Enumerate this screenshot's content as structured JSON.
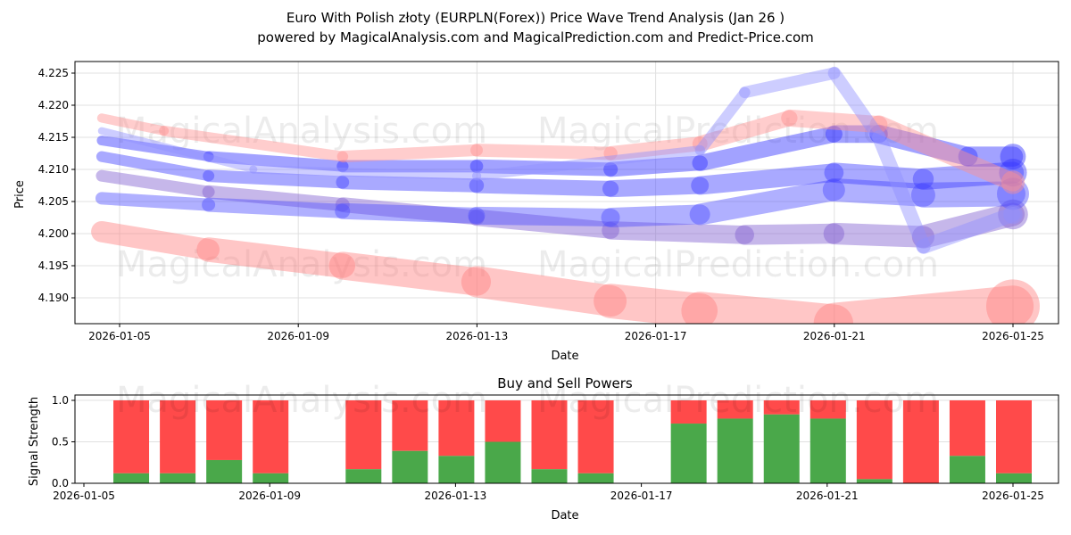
{
  "chart_data": [
    {
      "type": "line",
      "title": "Euro With Polish złoty (EURPLN(Forex)) Price Wave Trend Analysis (Jan 26 )",
      "subtitle": "powered by MagicalAnalysis.com and MagicalPrediction.com and Predict-Price.com",
      "xlabel": "Date",
      "ylabel": "Price",
      "xlim": [
        4.0,
        26.0
      ],
      "ylim": [
        4.186,
        4.227
      ],
      "x_ticks": [
        5,
        9,
        13,
        17,
        21,
        25
      ],
      "x_tick_labels": [
        "2026-01-05",
        "2026-01-09",
        "2026-01-13",
        "2026-01-17",
        "2026-01-21",
        "2026-01-25"
      ],
      "y_ticks": [
        4.19,
        4.195,
        4.2,
        4.205,
        4.21,
        4.215,
        4.22,
        4.225
      ],
      "y_tick_labels": [
        "4.190",
        "4.195",
        "4.200",
        "4.205",
        "4.210",
        "4.215",
        "4.220",
        "4.225"
      ],
      "grid": true,
      "watermarks": [
        "MagicalAnalysis.com",
        "MagicalPrediction.com"
      ],
      "series": [
        {
          "name": "red-low",
          "color": "#ff8080",
          "points": [
            [
              4.6,
              4.2003
            ],
            [
              7,
              4.1975
            ],
            [
              10,
              4.195
            ],
            [
              13,
              4.1925
            ],
            [
              16,
              4.1895
            ],
            [
              18,
              4.188
            ],
            [
              21,
              4.186
            ],
            [
              25,
              4.1887
            ]
          ]
        },
        {
          "name": "purple-low",
          "color": "#8060d0",
          "points": [
            [
              4.6,
              4.209
            ],
            [
              7,
              4.2065
            ],
            [
              10,
              4.2045
            ],
            [
              13,
              4.2025
            ],
            [
              16,
              4.2005
            ],
            [
              19,
              4.1998
            ],
            [
              21,
              4.2
            ],
            [
              23,
              4.1995
            ],
            [
              25,
              4.203
            ]
          ]
        },
        {
          "name": "blue-low",
          "color": "#5050ff",
          "points": [
            [
              4.6,
              4.2055
            ],
            [
              7,
              4.2045
            ],
            [
              10,
              4.2035
            ],
            [
              13,
              4.2028
            ],
            [
              16,
              4.2025
            ],
            [
              18,
              4.203
            ],
            [
              21,
              4.2068
            ],
            [
              23,
              4.206
            ],
            [
              25,
              4.2062
            ]
          ]
        },
        {
          "name": "blue-mid",
          "color": "#4040ff",
          "points": [
            [
              4.6,
              4.212
            ],
            [
              7,
              4.209
            ],
            [
              10,
              4.208
            ],
            [
              13,
              4.2075
            ],
            [
              16,
              4.207
            ],
            [
              18,
              4.2075
            ],
            [
              21,
              4.2095
            ],
            [
              23,
              4.2085
            ],
            [
              25,
              4.2095
            ]
          ]
        },
        {
          "name": "blue-upper",
          "color": "#3030ff",
          "points": [
            [
              4.6,
              4.2145
            ],
            [
              7,
              4.212
            ],
            [
              10,
              4.2105
            ],
            [
              13,
              4.2105
            ],
            [
              16,
              4.21
            ],
            [
              18,
              4.211
            ],
            [
              21,
              4.2155
            ],
            [
              22,
              4.2155
            ],
            [
              24,
              4.212
            ],
            [
              25,
              4.212
            ]
          ]
        },
        {
          "name": "pink-upper",
          "color": "#ff9090",
          "points": [
            [
              4.6,
              4.218
            ],
            [
              6,
              4.216
            ],
            [
              10,
              4.212
            ],
            [
              13,
              4.213
            ],
            [
              16,
              4.2125
            ],
            [
              18,
              4.214
            ],
            [
              20,
              4.218
            ],
            [
              22,
              4.217
            ],
            [
              25,
              4.208
            ]
          ]
        },
        {
          "name": "light-blue-wave",
          "color": "#9090ff",
          "points": [
            [
              4.6,
              4.216
            ],
            [
              8,
              4.21
            ],
            [
              13,
              4.209
            ],
            [
              18,
              4.213
            ],
            [
              19,
              4.222
            ],
            [
              21,
              4.225
            ],
            [
              22,
              4.215
            ],
            [
              23,
              4.198
            ],
            [
              25,
              4.203
            ]
          ]
        }
      ]
    },
    {
      "type": "bar",
      "title": "Buy and Sell Powers",
      "xlabel": "Date",
      "ylabel": "Signal Strength",
      "xlim": [
        4.2,
        26.0
      ],
      "ylim": [
        0,
        1.05
      ],
      "y_ticks": [
        0,
        0.5,
        1.0
      ],
      "y_tick_labels": [
        "0.0",
        "0.5",
        "1.0"
      ],
      "x_ticks": [
        5,
        9,
        13,
        17,
        21,
        25
      ],
      "x_tick_labels": [
        "2026-01-05",
        "2026-01-09",
        "2026-01-13",
        "2026-01-17",
        "2026-01-21",
        "2026-01-25"
      ],
      "days": [
        6,
        7,
        8,
        9,
        11,
        12,
        13,
        14,
        15,
        16,
        18,
        19,
        20,
        21,
        22,
        23,
        24,
        25
      ],
      "buy": [
        0.12,
        0.12,
        0.28,
        0.12,
        0.17,
        0.39,
        0.33,
        0.5,
        0.17,
        0.12,
        0.72,
        0.78,
        0.83,
        0.78,
        0.05,
        0.0,
        0.33,
        0.12
      ],
      "colors": {
        "buy": "#4aa84a",
        "sell": "#ff4a4a"
      }
    }
  ]
}
